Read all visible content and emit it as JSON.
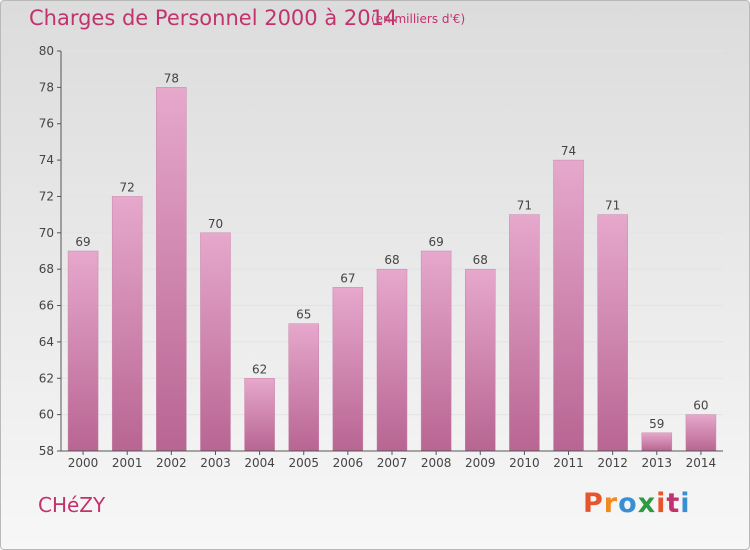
{
  "header": {
    "title": "Charges de Personnel 2000 à 2014",
    "unit": "(en milliers d'€)"
  },
  "footer": {
    "commune": "CHéZY",
    "brand": "Proxiti"
  },
  "colors": {
    "bar_light": "#e6a8cc",
    "bar_dark": "#b86592",
    "text_accent": "#c2336e",
    "logo_letters": [
      "#e8542b",
      "#f08a1e",
      "#3a8fd4",
      "#2f9a3f",
      "#e8542b",
      "#c2336e",
      "#3a8fd4"
    ]
  },
  "chart_data": {
    "type": "bar",
    "title": "Charges de Personnel 2000 à 2014",
    "subtitle": "(en milliers d'€)",
    "categories": [
      "2000",
      "2001",
      "2002",
      "2003",
      "2004",
      "2005",
      "2006",
      "2007",
      "2008",
      "2009",
      "2010",
      "2011",
      "2012",
      "2013",
      "2014"
    ],
    "values": [
      69,
      72,
      78,
      70,
      62,
      65,
      67,
      68,
      69,
      68,
      71,
      74,
      71,
      59,
      60
    ],
    "ylim": [
      58,
      80
    ],
    "yticks": [
      58,
      60,
      62,
      64,
      66,
      68,
      70,
      72,
      74,
      76,
      78,
      80
    ],
    "grid": true,
    "legend": "none"
  }
}
